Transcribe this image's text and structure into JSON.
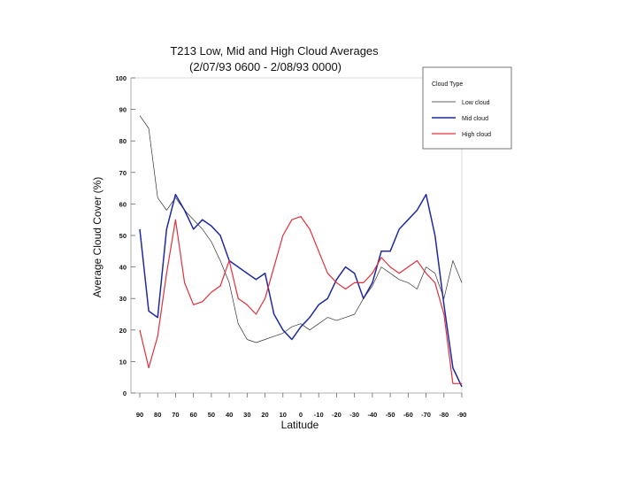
{
  "chart_data": {
    "type": "line",
    "title": "T213 Low, Mid and High Cloud Averages",
    "subtitle": "(2/07/93 0600 - 2/08/93 0000)",
    "xlabel": "Latitude",
    "ylabel": "Average Cloud Cover (%)",
    "xlim": [
      90,
      -90
    ],
    "ylim": [
      0,
      100
    ],
    "x_ticks": [
      "90",
      "80",
      "70",
      "60",
      "50",
      "40",
      "30",
      "20",
      "10",
      "0",
      "-10",
      "-20",
      "-30",
      "-40",
      "-50",
      "-60",
      "-70",
      "-80",
      "-90"
    ],
    "y_ticks": [
      "0",
      "10",
      "20",
      "30",
      "40",
      "50",
      "60",
      "70",
      "80",
      "90",
      "100"
    ],
    "legend": {
      "title": "Cloud Type",
      "position": "top-right"
    },
    "x": [
      90,
      85,
      80,
      75,
      70,
      65,
      60,
      55,
      50,
      45,
      40,
      35,
      30,
      25,
      20,
      15,
      10,
      5,
      0,
      -5,
      -10,
      -15,
      -20,
      -25,
      -30,
      -35,
      -40,
      -45,
      -50,
      -55,
      -60,
      -65,
      -70,
      -75,
      -80,
      -85,
      -90
    ],
    "series": [
      {
        "name": "Low cloud",
        "color": "#333333",
        "values": [
          88,
          84,
          62,
          58,
          62,
          58,
          55,
          52,
          48,
          42,
          35,
          22,
          17,
          16,
          17,
          18,
          19,
          21,
          22,
          20,
          22,
          24,
          23,
          24,
          25,
          30,
          34,
          40,
          38,
          36,
          35,
          33,
          40,
          38,
          30,
          42,
          35
        ]
      },
      {
        "name": "Mid cloud",
        "color": "#1f2a9e",
        "values": [
          52,
          26,
          24,
          52,
          63,
          58,
          52,
          55,
          53,
          50,
          42,
          40,
          38,
          36,
          38,
          25,
          20,
          17,
          21,
          24,
          28,
          30,
          36,
          40,
          38,
          30,
          35,
          45,
          45,
          52,
          55,
          58,
          63,
          50,
          28,
          8,
          2
        ]
      },
      {
        "name": "High cloud",
        "color": "#e0303a",
        "values": [
          20,
          8,
          18,
          38,
          55,
          35,
          28,
          29,
          32,
          34,
          42,
          30,
          28,
          25,
          30,
          40,
          50,
          55,
          56,
          52,
          45,
          38,
          35,
          33,
          35,
          35,
          38,
          43,
          40,
          38,
          40,
          42,
          38,
          35,
          25,
          3,
          3
        ]
      }
    ]
  }
}
